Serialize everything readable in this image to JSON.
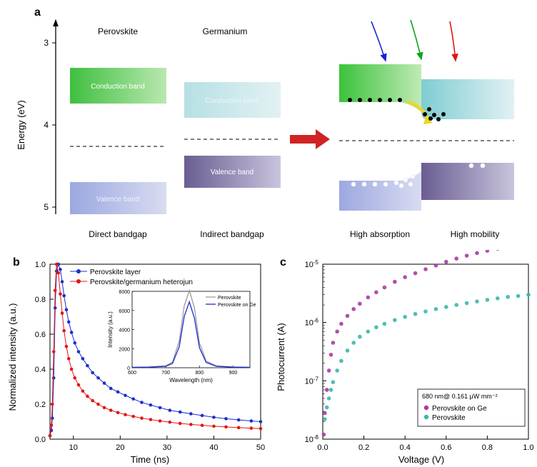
{
  "panel_a": {
    "label": "a",
    "label_fontsize": 16,
    "label_fontweight": "bold",
    "ylabel": "Energy (eV)",
    "yticks": [
      3,
      4,
      5
    ],
    "column_labels": [
      "Perovskite",
      "Germanium"
    ],
    "bottom_labels": [
      "Direct bandgap",
      "Indirect bandgap",
      "High absorption",
      "High mobility"
    ],
    "perov": {
      "cb_label": "Conduction band",
      "vb_label": "Valence band",
      "cb_fill_from": "#3fbf3f",
      "cb_fill_to": "#b9e8b0",
      "vb_fill_from": "#9ca8e0",
      "vb_fill_to": "#d8dcf1",
      "cb_label_color": "#ffffff",
      "vb_label_color": "#f0f1fa"
    },
    "germ": {
      "cb_label": "Conduction band",
      "vb_label": "Valence band",
      "cb_fill_from": "#b6e0e4",
      "cb_fill_to": "#e3f1f3",
      "vb_fill_from": "#6a5d92",
      "vb_fill_to": "#c9c4dd",
      "cb_label_color": "#e9f6f7",
      "vb_label_color": "#ffffff"
    },
    "right": {
      "cb_perov_from": "#3cc23c",
      "cb_perov_to": "#bfeab5",
      "cb_germ_from": "#7fcdd2",
      "cb_germ_to": "#e2f1f3",
      "vb_perov_from": "#9ca8e0",
      "vb_perov_to": "#d8dcf1",
      "vb_germ_from": "#6a5d92",
      "vb_germ_to": "#c9c4dd",
      "arrow_colors": [
        "#1522d8",
        "#0aa516",
        "#e11414"
      ],
      "electron_color": "#000000",
      "hole_stroke": "#f5f5f5"
    },
    "fermi_dash": "#000000",
    "big_arrow_color": "#d02323",
    "label_fontsize_bands": 10,
    "axis_fontsize": 13,
    "tick_fontsize": 12,
    "bottom_label_fontsize": 12
  },
  "panel_b": {
    "label": "b",
    "type": "line",
    "xlabel": "Time (ns)",
    "ylabel": "Normalized intensity (a.u.)",
    "xlim": [
      5,
      50
    ],
    "ylim": [
      0,
      1.0
    ],
    "xticks": [
      10,
      20,
      30,
      40,
      50
    ],
    "yticks": [
      0.0,
      0.2,
      0.4,
      0.6,
      0.8,
      1.0
    ],
    "tick_fontsize": 11,
    "axis_fontsize": 13,
    "legend_fontsize": 10,
    "series": [
      {
        "name": "Perovskite layer",
        "color": "#1b2fcf",
        "marker": "circle",
        "data": [
          [
            5,
            0.02
          ],
          [
            5.3,
            0.05
          ],
          [
            5.5,
            0.12
          ],
          [
            5.8,
            0.35
          ],
          [
            6.1,
            0.75
          ],
          [
            6.4,
            0.96
          ],
          [
            6.8,
            1.0
          ],
          [
            7.2,
            0.97
          ],
          [
            7.6,
            0.9
          ],
          [
            8.0,
            0.82
          ],
          [
            8.5,
            0.74
          ],
          [
            9.0,
            0.67
          ],
          [
            9.6,
            0.61
          ],
          [
            10.3,
            0.55
          ],
          [
            11.1,
            0.5
          ],
          [
            12.0,
            0.46
          ],
          [
            13.0,
            0.42
          ],
          [
            14.1,
            0.38
          ],
          [
            15.3,
            0.35
          ],
          [
            16.6,
            0.32
          ],
          [
            18.0,
            0.29
          ],
          [
            19.5,
            0.27
          ],
          [
            21.1,
            0.25
          ],
          [
            22.8,
            0.23
          ],
          [
            24.6,
            0.21
          ],
          [
            26.5,
            0.195
          ],
          [
            28.5,
            0.18
          ],
          [
            30.6,
            0.165
          ],
          [
            32.8,
            0.155
          ],
          [
            35.1,
            0.145
          ],
          [
            37.5,
            0.135
          ],
          [
            40.0,
            0.125
          ],
          [
            42.6,
            0.117
          ],
          [
            45.3,
            0.11
          ],
          [
            48,
            0.104
          ],
          [
            50,
            0.1
          ]
        ]
      },
      {
        "name": "Perovskite/germanium heterojun",
        "color": "#e41515",
        "marker": "circle",
        "data": [
          [
            5,
            0.02
          ],
          [
            5.3,
            0.08
          ],
          [
            5.5,
            0.2
          ],
          [
            5.8,
            0.5
          ],
          [
            6.1,
            0.85
          ],
          [
            6.4,
            1.0
          ],
          [
            6.8,
            0.95
          ],
          [
            7.2,
            0.83
          ],
          [
            7.6,
            0.72
          ],
          [
            8.0,
            0.62
          ],
          [
            8.5,
            0.53
          ],
          [
            9.0,
            0.46
          ],
          [
            9.6,
            0.4
          ],
          [
            10.3,
            0.35
          ],
          [
            11.1,
            0.31
          ],
          [
            12.0,
            0.275
          ],
          [
            13.0,
            0.245
          ],
          [
            14.1,
            0.22
          ],
          [
            15.3,
            0.2
          ],
          [
            16.6,
            0.18
          ],
          [
            18.0,
            0.165
          ],
          [
            19.5,
            0.152
          ],
          [
            21.1,
            0.14
          ],
          [
            22.8,
            0.13
          ],
          [
            24.6,
            0.12
          ],
          [
            26.5,
            0.112
          ],
          [
            28.5,
            0.104
          ],
          [
            30.6,
            0.097
          ],
          [
            32.8,
            0.09
          ],
          [
            35.1,
            0.084
          ],
          [
            37.5,
            0.079
          ],
          [
            40.0,
            0.074
          ],
          [
            42.6,
            0.07
          ],
          [
            45.3,
            0.066
          ],
          [
            48,
            0.063
          ],
          [
            50,
            0.06
          ]
        ]
      }
    ],
    "inset": {
      "xlabel": "Wavelength (nm)",
      "ylabel": "Intensity (a.u.)",
      "xlim": [
        600,
        950
      ],
      "ylim": [
        0,
        8000
      ],
      "xticks": [
        600,
        700,
        800,
        900
      ],
      "yticks": [
        0,
        2000,
        4000,
        6000,
        8000
      ],
      "tick_fontsize": 7,
      "axis_fontsize": 8,
      "legend_fontsize": 7,
      "series": [
        {
          "name": "Perovskite",
          "color": "#9a9a9a",
          "data": [
            [
              600,
              50
            ],
            [
              650,
              80
            ],
            [
              700,
              200
            ],
            [
              720,
              600
            ],
            [
              740,
              2800
            ],
            [
              755,
              6500
            ],
            [
              770,
              8100
            ],
            [
              785,
              6300
            ],
            [
              800,
              2600
            ],
            [
              820,
              700
            ],
            [
              850,
              200
            ],
            [
              900,
              80
            ],
            [
              950,
              50
            ]
          ]
        },
        {
          "name": "Perovskite on Ge",
          "color": "#1b2fcf",
          "data": [
            [
              600,
              40
            ],
            [
              650,
              60
            ],
            [
              700,
              150
            ],
            [
              720,
              450
            ],
            [
              740,
              2200
            ],
            [
              755,
              5400
            ],
            [
              770,
              6900
            ],
            [
              785,
              5200
            ],
            [
              800,
              2100
            ],
            [
              820,
              550
            ],
            [
              850,
              150
            ],
            [
              900,
              60
            ],
            [
              950,
              40
            ]
          ]
        }
      ]
    }
  },
  "panel_c": {
    "label": "c",
    "type": "scatter-logy",
    "xlabel": "Voltage (V)",
    "ylabel": "Photocurrent (A)",
    "xlim": [
      0,
      1.0
    ],
    "ylim_exp": [
      -8,
      -5
    ],
    "xticks": [
      0.0,
      0.2,
      0.4,
      0.6,
      0.8,
      1.0
    ],
    "ytick_exp": [
      -8,
      -7,
      -6,
      -5
    ],
    "tick_fontsize": 11,
    "axis_fontsize": 13,
    "legend_fontsize": 10,
    "annotation": "680 nm@ 0.161 μW mm⁻²",
    "series": [
      {
        "name": "Perovskite on Ge",
        "color": "#a93aa6",
        "marker": "circle",
        "data": [
          [
            0.005,
            1.2e-08
          ],
          [
            0.01,
            2.8e-08
          ],
          [
            0.02,
            7e-08
          ],
          [
            0.03,
            1.5e-07
          ],
          [
            0.04,
            2.8e-07
          ],
          [
            0.05,
            4.5e-07
          ],
          [
            0.07,
            7e-07
          ],
          [
            0.09,
            9.5e-07
          ],
          [
            0.12,
            1.3e-06
          ],
          [
            0.15,
            1.7e-06
          ],
          [
            0.18,
            2.1e-06
          ],
          [
            0.22,
            2.7e-06
          ],
          [
            0.26,
            3.3e-06
          ],
          [
            0.3,
            4e-06
          ],
          [
            0.35,
            5e-06
          ],
          [
            0.4,
            6e-06
          ],
          [
            0.45,
            7e-06
          ],
          [
            0.5,
            8.2e-06
          ],
          [
            0.55,
            9.5e-06
          ],
          [
            0.6,
            1.1e-05
          ],
          [
            0.65,
            1.25e-05
          ],
          [
            0.7,
            1.4e-05
          ],
          [
            0.75,
            1.55e-05
          ],
          [
            0.8,
            1.7e-05
          ],
          [
            0.85,
            1.85e-05
          ],
          [
            0.9,
            2e-05
          ],
          [
            0.95,
            2.15e-05
          ],
          [
            1.0,
            2.3e-05
          ]
        ]
      },
      {
        "name": "Perovskite",
        "color": "#3bb8aa",
        "marker": "circle",
        "data": [
          [
            0.01,
            2.2e-08
          ],
          [
            0.02,
            3.5e-08
          ],
          [
            0.03,
            5e-08
          ],
          [
            0.04,
            7e-08
          ],
          [
            0.05,
            9.5e-08
          ],
          [
            0.07,
            1.5e-07
          ],
          [
            0.09,
            2.2e-07
          ],
          [
            0.12,
            3.3e-07
          ],
          [
            0.15,
            4.5e-07
          ],
          [
            0.18,
            5.7e-07
          ],
          [
            0.22,
            7e-07
          ],
          [
            0.26,
            8.3e-07
          ],
          [
            0.3,
            9.5e-07
          ],
          [
            0.35,
            1.1e-06
          ],
          [
            0.4,
            1.25e-06
          ],
          [
            0.45,
            1.4e-06
          ],
          [
            0.5,
            1.55e-06
          ],
          [
            0.55,
            1.7e-06
          ],
          [
            0.6,
            1.85e-06
          ],
          [
            0.65,
            2e-06
          ],
          [
            0.7,
            2.15e-06
          ],
          [
            0.75,
            2.3e-06
          ],
          [
            0.8,
            2.45e-06
          ],
          [
            0.85,
            2.6e-06
          ],
          [
            0.9,
            2.75e-06
          ],
          [
            0.95,
            2.85e-06
          ],
          [
            1.0,
            3e-06
          ]
        ]
      }
    ]
  }
}
